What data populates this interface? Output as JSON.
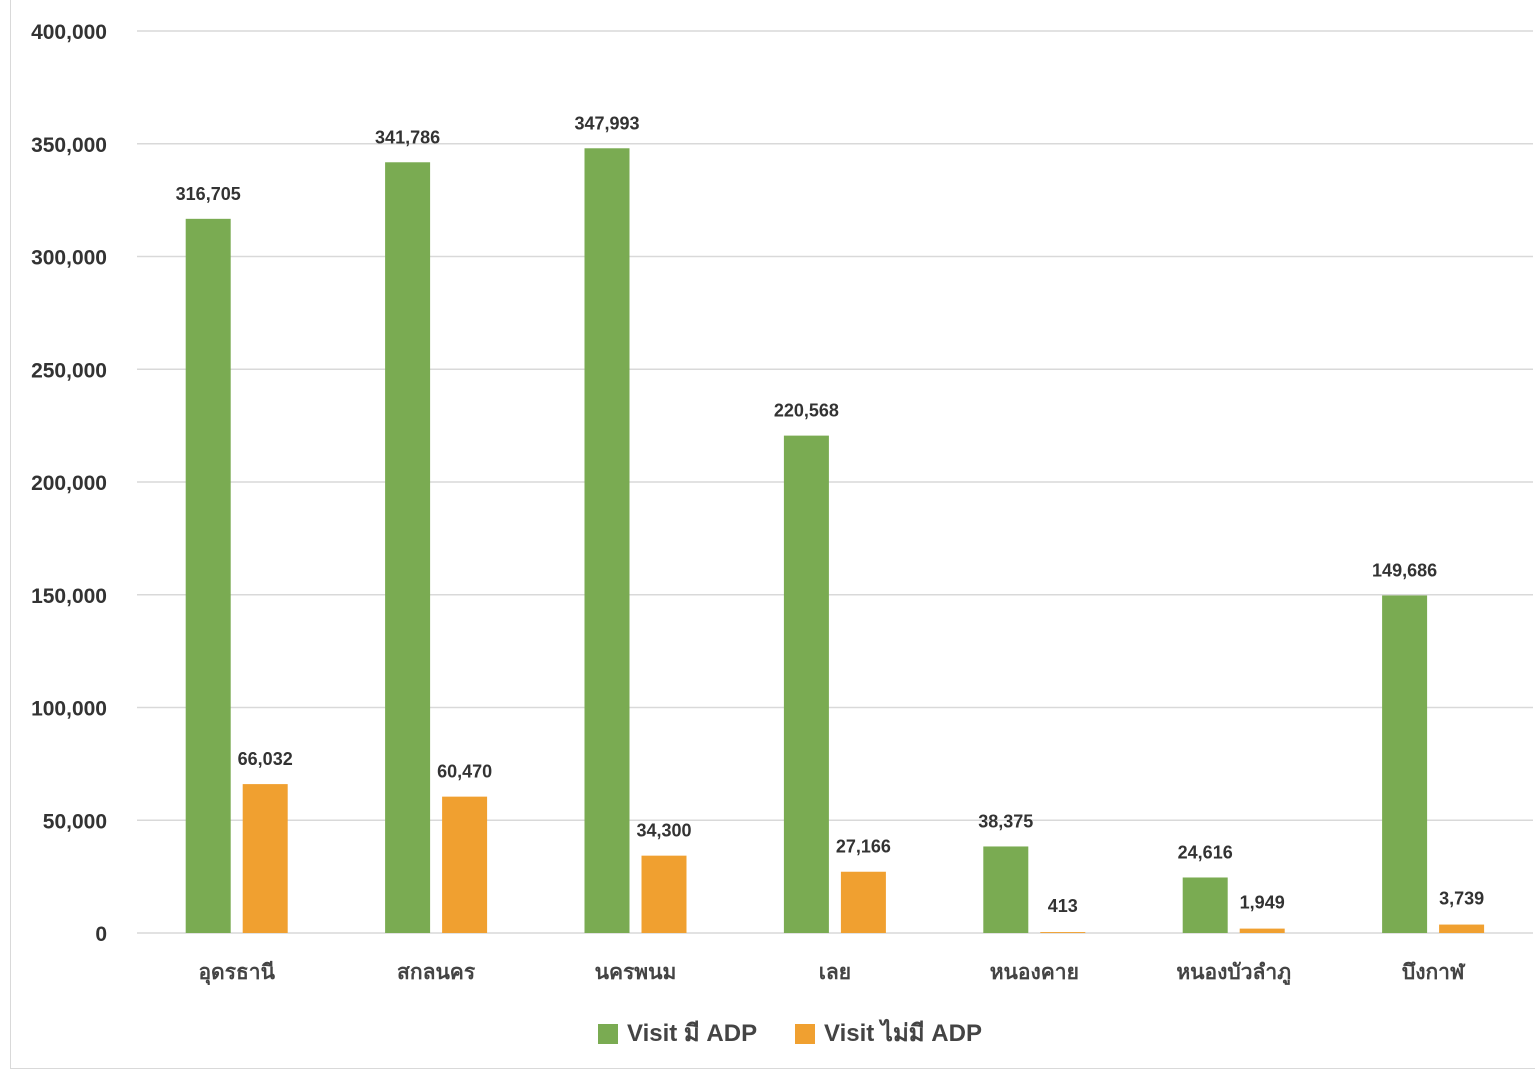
{
  "chart_data": {
    "type": "bar",
    "categories": [
      "อุดรธานี",
      "สกลนคร",
      "นครพนม",
      "เลย",
      "หนองคาย",
      "หนองบัวลำภู",
      "บึงกาฬ"
    ],
    "series": [
      {
        "name": "Visit มี ADP",
        "color": "#7aab52",
        "values": [
          316705,
          341786,
          347993,
          220568,
          38375,
          24616,
          149686
        ],
        "labels": [
          "316,705",
          "341,786",
          "347,993",
          "220,568",
          "38,375",
          "24,616",
          "149,686"
        ]
      },
      {
        "name": "Visit ไม่มี ADP",
        "color": "#f0a030",
        "values": [
          66032,
          60470,
          34300,
          27166,
          413,
          1949,
          3739
        ],
        "labels": [
          "66,032",
          "60,470",
          "34,300",
          "27,166",
          "413",
          "1,949",
          "3,739"
        ]
      }
    ],
    "ylim": [
      0,
      400000
    ],
    "yticks": [
      0,
      50000,
      100000,
      150000,
      200000,
      250000,
      300000,
      350000,
      400000
    ],
    "ytick_labels": [
      "0",
      "50,000",
      "100,000",
      "150,000",
      "200,000",
      "250,000",
      "300,000",
      "350,000",
      "400,000"
    ],
    "grid": true,
    "legend_position": "bottom-center",
    "title": "",
    "xlabel": "",
    "ylabel": ""
  }
}
